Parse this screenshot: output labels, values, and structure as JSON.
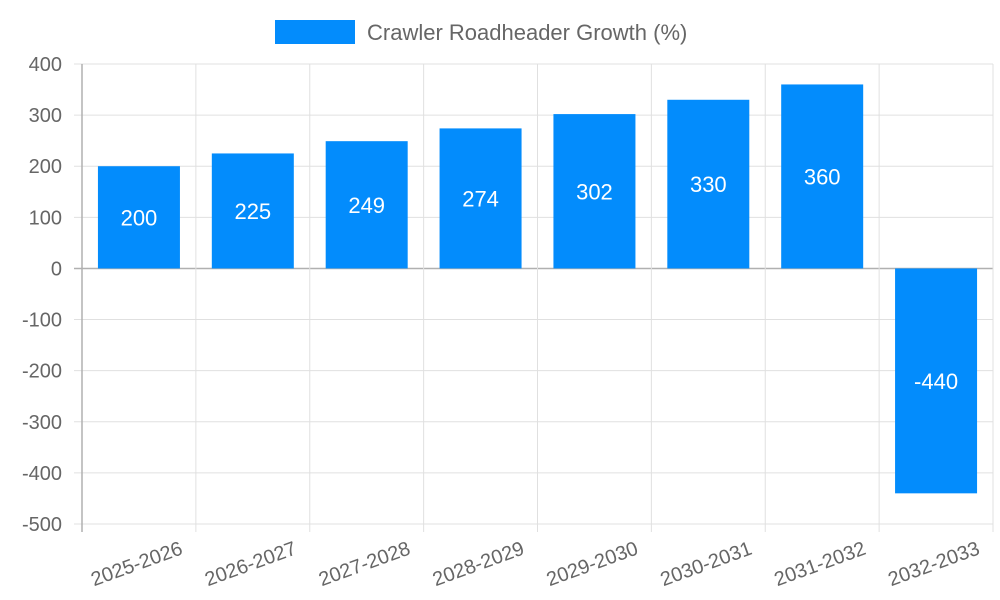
{
  "chart_data": {
    "type": "bar",
    "title": "",
    "xlabel": "",
    "ylabel": "",
    "categories": [
      "2025-2026",
      "2026-2027",
      "2027-2028",
      "2028-2029",
      "2029-2030",
      "2030-2031",
      "2031-2032",
      "2032-2033"
    ],
    "series": [
      {
        "name": "Crawler Roadheader Growth (%)",
        "values": [
          200,
          225,
          249,
          274,
          302,
          330,
          360,
          -440
        ],
        "color": "#038cfc"
      }
    ],
    "ylim": [
      -500,
      400
    ],
    "yticks": [
      400,
      300,
      200,
      100,
      0,
      -100,
      -200,
      -300,
      -400,
      -500
    ],
    "grid": true,
    "legend_position": "top",
    "data_labels": true
  },
  "legend": {
    "label": "Crawler Roadheader Growth (%)",
    "color": "#038cfc"
  },
  "colors": {
    "bar": "#038cfc",
    "grid": "#e0e0e0",
    "axis": "#b0b0b0",
    "text": "#666666",
    "label": "#ffffff"
  }
}
